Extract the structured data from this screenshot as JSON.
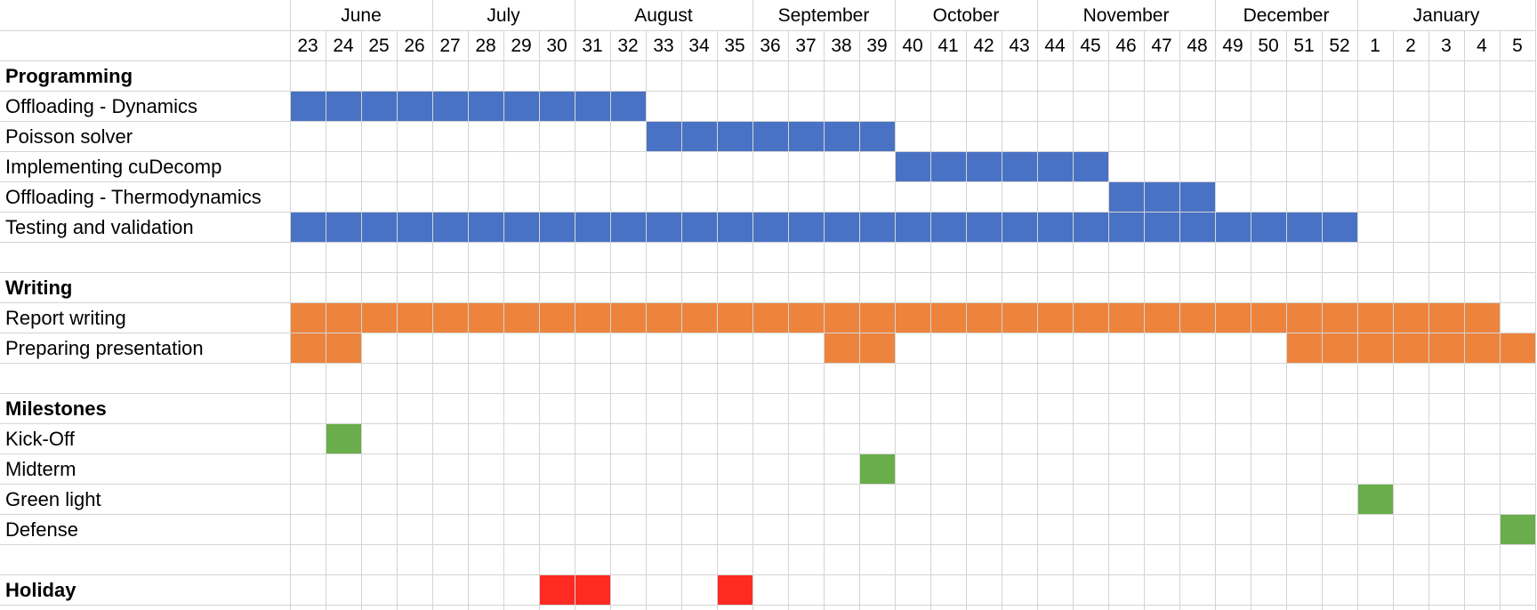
{
  "chart_data": {
    "type": "gantt",
    "title": "",
    "months": [
      {
        "label": "June",
        "start_index": 0,
        "span": 4
      },
      {
        "label": "July",
        "start_index": 4,
        "span": 4
      },
      {
        "label": "August",
        "start_index": 8,
        "span": 5
      },
      {
        "label": "September",
        "start_index": 13,
        "span": 4
      },
      {
        "label": "October",
        "start_index": 17,
        "span": 4
      },
      {
        "label": "November",
        "start_index": 21,
        "span": 5
      },
      {
        "label": "December",
        "start_index": 26,
        "span": 4
      },
      {
        "label": "January",
        "start_index": 30,
        "span": 5
      }
    ],
    "weeks": [
      "23",
      "24",
      "25",
      "26",
      "27",
      "28",
      "29",
      "30",
      "31",
      "32",
      "33",
      "34",
      "35",
      "36",
      "37",
      "38",
      "39",
      "40",
      "41",
      "42",
      "43",
      "44",
      "45",
      "46",
      "47",
      "48",
      "49",
      "50",
      "51",
      "52",
      "1",
      "2",
      "3",
      "4",
      "5"
    ],
    "rows": [
      {
        "label": "Programming",
        "kind": "section"
      },
      {
        "label": "Offloading - Dynamics",
        "kind": "task",
        "color": "#4a72c4",
        "bars": [
          {
            "start_week": "23",
            "end_week": "32"
          }
        ]
      },
      {
        "label": "Poisson solver",
        "kind": "task",
        "color": "#4a72c4",
        "bars": [
          {
            "start_week": "33",
            "end_week": "39"
          }
        ]
      },
      {
        "label": "Implementing cuDecomp",
        "kind": "task",
        "color": "#4a72c4",
        "bars": [
          {
            "start_week": "40",
            "end_week": "45"
          }
        ]
      },
      {
        "label": "Offloading - Thermodynamics",
        "kind": "task",
        "color": "#4a72c4",
        "bars": [
          {
            "start_week": "46",
            "end_week": "48"
          }
        ]
      },
      {
        "label": "Testing and validation",
        "kind": "task",
        "color": "#4a72c4",
        "bars": [
          {
            "start_week": "23",
            "end_week": "52"
          }
        ]
      },
      {
        "label": "",
        "kind": "blank"
      },
      {
        "label": "Writing",
        "kind": "section"
      },
      {
        "label": "Report writing",
        "kind": "task",
        "color": "#ed843d",
        "bars": [
          {
            "start_week": "23",
            "end_week": "4"
          }
        ]
      },
      {
        "label": "Preparing presentation",
        "kind": "task",
        "color": "#ed843d",
        "bars": [
          {
            "start_week": "23",
            "end_week": "24"
          },
          {
            "start_week": "38",
            "end_week": "39"
          },
          {
            "start_week": "51",
            "end_week": "5"
          }
        ]
      },
      {
        "label": "",
        "kind": "blank"
      },
      {
        "label": "Milestones",
        "kind": "section"
      },
      {
        "label": "Kick-Off",
        "kind": "task",
        "color": "#6aad4b",
        "bars": [
          {
            "start_week": "24",
            "end_week": "24"
          }
        ]
      },
      {
        "label": "Midterm",
        "kind": "task",
        "color": "#6aad4b",
        "bars": [
          {
            "start_week": "39",
            "end_week": "39"
          }
        ]
      },
      {
        "label": "Green light",
        "kind": "task",
        "color": "#6aad4b",
        "bars": [
          {
            "start_week": "1",
            "end_week": "1"
          }
        ]
      },
      {
        "label": "Defense",
        "kind": "task",
        "color": "#6aad4b",
        "bars": [
          {
            "start_week": "5",
            "end_week": "5"
          }
        ]
      },
      {
        "label": "",
        "kind": "blank"
      },
      {
        "label": "Holiday",
        "kind": "section",
        "color": "#ff2a22",
        "bars": [
          {
            "start_week": "30",
            "end_week": "31"
          },
          {
            "start_week": "35",
            "end_week": "35"
          }
        ]
      }
    ],
    "grid": true,
    "legend": "none"
  }
}
